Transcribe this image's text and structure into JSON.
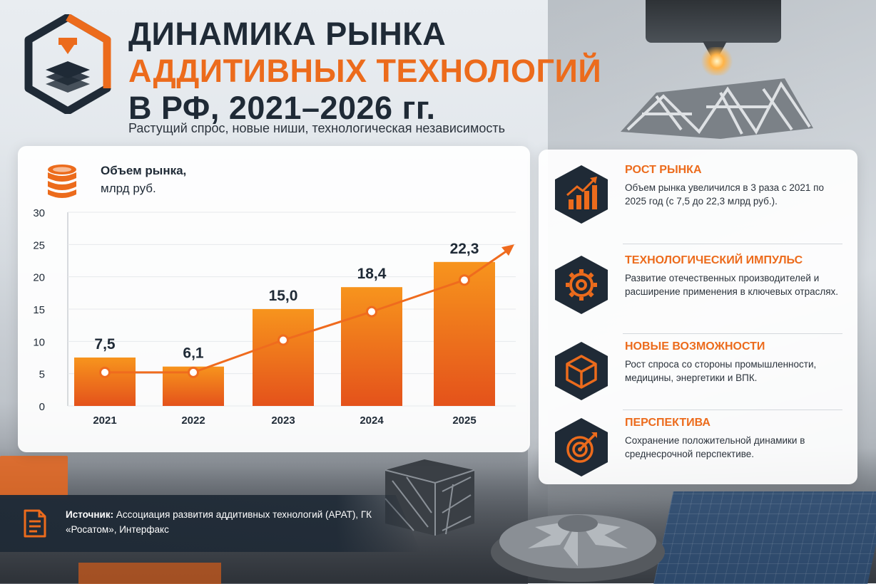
{
  "header": {
    "title_line1": "ДИНАМИКА РЫНКА",
    "title_line2": "АДДИТИВНЫХ ТЕХНОЛОГИЙ",
    "title_line3": "В РФ, 2021–2026 гг.",
    "subtitle": "Растущий спрос, новые ниши, технологическая независимость"
  },
  "chart_panel": {
    "label_bold": "Объем рынка,",
    "label_unit": "млрд руб."
  },
  "chart_data": {
    "type": "bar",
    "categories": [
      "2021",
      "2022",
      "2023",
      "2024",
      "2025"
    ],
    "values": [
      7.5,
      6.1,
      15.0,
      18.4,
      22.3
    ],
    "value_labels": [
      "7,5",
      "6,1",
      "15,0",
      "18,4",
      "22,3"
    ],
    "trend_points": [
      5.2,
      5.2,
      10.2,
      14.6,
      19.5
    ],
    "ylim": [
      0,
      30
    ],
    "yticks": [
      "0",
      "5",
      "10",
      "15",
      "20",
      "25",
      "30"
    ],
    "ytick_values": [
      0,
      5,
      10,
      15,
      20,
      25,
      30
    ],
    "title": "",
    "xlabel": "",
    "ylabel": "",
    "grid": true,
    "colors": {
      "bar_top": "#f7941d",
      "bar_bottom": "#e4521b",
      "trend": "#ef6b1e",
      "text": "#1f2a36"
    }
  },
  "info": {
    "items": [
      {
        "title": "РОСТ РЫНКА",
        "text": "Объем рынка увеличился в 3 раза с 2021 по 2025 год (с 7,5 до 22,3 млрд руб.).",
        "icon": "growth-chart-icon"
      },
      {
        "title": "ТЕХНОЛОГИЧЕСКИЙ ИМПУЛЬС",
        "text": "Развитие отечественных производителей и расширение применения в ключевых отраслях.",
        "icon": "gear-icon"
      },
      {
        "title": "НОВЫЕ ВОЗМОЖНОСТИ",
        "text": "Рост спроса со стороны промышленности, медицины, энергетики и ВПК.",
        "icon": "cube-icon"
      },
      {
        "title": "ПЕРСПЕКТИВА",
        "text": "Сохранение положительной динамики в среднесрочной перспективе.",
        "icon": "target-icon"
      }
    ]
  },
  "source": {
    "label": "Источник:",
    "text": "Ассоциация развития аддитивных технологий (АРАТ), ГК «Росатом», Интерфакс"
  },
  "colors": {
    "accent": "#ec6b1c",
    "dark": "#1f2a36"
  }
}
